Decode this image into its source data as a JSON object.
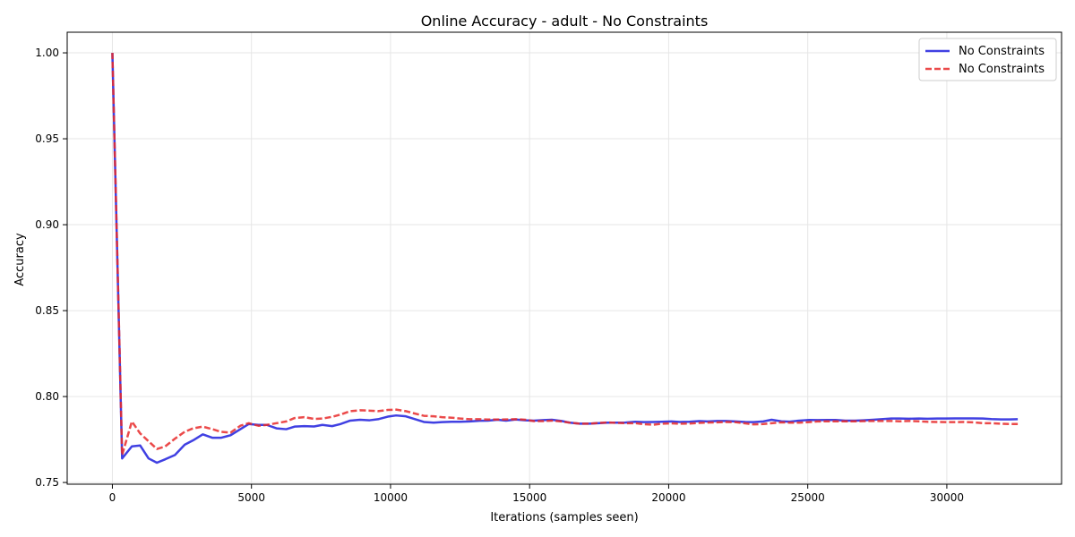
{
  "chart_data": {
    "type": "line",
    "title": "Online Accuracy - adult - No Constraints",
    "xlabel": "Iterations (samples seen)",
    "ylabel": "Accuracy",
    "xlim": [
      -1625,
      34125
    ],
    "ylim": [
      0.749,
      1.012
    ],
    "xticks": [
      0,
      5000,
      10000,
      15000,
      20000,
      25000,
      30000
    ],
    "yticks": [
      0.75,
      0.8,
      0.85,
      0.9,
      0.95,
      1.0
    ],
    "xtick_labels": [
      "0",
      "5000",
      "10000",
      "15000",
      "20000",
      "25000",
      "30000"
    ],
    "ytick_labels": [
      "0.75",
      "0.80",
      "0.85",
      "0.90",
      "0.95",
      "1.00"
    ],
    "grid": true,
    "legend_position": "top-right",
    "series": [
      {
        "name": "No Constraints",
        "color": "#1f1fdd",
        "style": "solid",
        "x": [
          0,
          350,
          700,
          1000,
          1300,
          1600,
          1900,
          2250,
          2600,
          2900,
          3250,
          3600,
          3900,
          4250,
          4600,
          4900,
          5250,
          5550,
          5900,
          6250,
          6550,
          6900,
          7250,
          7550,
          7900,
          8200,
          8550,
          8900,
          9250,
          9550,
          9900,
          10200,
          10550,
          10850,
          11200,
          11550,
          11850,
          12200,
          12500,
          12850,
          13200,
          13500,
          13850,
          14150,
          14500,
          14850,
          15150,
          15500,
          15800,
          16150,
          16450,
          16800,
          17150,
          17450,
          17800,
          18100,
          18450,
          18800,
          19100,
          19450,
          19750,
          20100,
          20400,
          20750,
          21100,
          21400,
          21750,
          22050,
          22400,
          22750,
          23050,
          23400,
          23700,
          24050,
          24350,
          24700,
          25050,
          25350,
          25700,
          26000,
          26350,
          26700,
          27000,
          27350,
          27650,
          28000,
          28300,
          28650,
          29000,
          29300,
          29650,
          29950,
          30300,
          30600,
          30950,
          31300,
          31600,
          31950,
          32250,
          32550
        ],
        "y": [
          1.0,
          0.764,
          0.771,
          0.7715,
          0.764,
          0.7615,
          0.7635,
          0.766,
          0.772,
          0.7745,
          0.778,
          0.776,
          0.776,
          0.7775,
          0.781,
          0.784,
          0.7835,
          0.7835,
          0.7815,
          0.781,
          0.7825,
          0.7828,
          0.7826,
          0.7835,
          0.7828,
          0.784,
          0.786,
          0.7865,
          0.7862,
          0.7868,
          0.7883,
          0.789,
          0.7885,
          0.787,
          0.7852,
          0.7848,
          0.7851,
          0.7853,
          0.7853,
          0.7855,
          0.7859,
          0.786,
          0.7865,
          0.786,
          0.7866,
          0.7862,
          0.786,
          0.7863,
          0.7865,
          0.7858,
          0.7848,
          0.7842,
          0.7842,
          0.7845,
          0.7848,
          0.7848,
          0.7849,
          0.7853,
          0.7851,
          0.7852,
          0.7853,
          0.7855,
          0.7852,
          0.7853,
          0.7857,
          0.7855,
          0.7858,
          0.7858,
          0.7855,
          0.7852,
          0.7851,
          0.7855,
          0.7865,
          0.7856,
          0.7854,
          0.786,
          0.7864,
          0.7863,
          0.7864,
          0.7864,
          0.786,
          0.786,
          0.7862,
          0.7865,
          0.7868,
          0.7872,
          0.7872,
          0.7871,
          0.7872,
          0.7871,
          0.7872,
          0.7872,
          0.7873,
          0.7873,
          0.7873,
          0.7872,
          0.7869,
          0.7867,
          0.7867,
          0.7868
        ]
      },
      {
        "name": "No Constraints",
        "color": "#e82a2a",
        "style": "dashed",
        "x": [
          0,
          350,
          700,
          1000,
          1300,
          1600,
          1900,
          2250,
          2600,
          2900,
          3250,
          3600,
          3900,
          4250,
          4600,
          4900,
          5250,
          5550,
          5900,
          6250,
          6550,
          6900,
          7250,
          7550,
          7900,
          8200,
          8550,
          8900,
          9250,
          9550,
          9900,
          10200,
          10550,
          10850,
          11200,
          11550,
          11850,
          12200,
          12500,
          12850,
          13200,
          13500,
          13850,
          14150,
          14500,
          14850,
          15150,
          15500,
          15800,
          16150,
          16450,
          16800,
          17150,
          17450,
          17800,
          18100,
          18450,
          18800,
          19100,
          19450,
          19750,
          20100,
          20400,
          20750,
          21100,
          21400,
          21750,
          22050,
          22400,
          22750,
          23050,
          23400,
          23700,
          24050,
          24350,
          24700,
          25050,
          25350,
          25700,
          26000,
          26350,
          26700,
          27000,
          27350,
          27650,
          28000,
          28300,
          28650,
          29000,
          29300,
          29650,
          29950,
          30300,
          30600,
          30950,
          31300,
          31600,
          31950,
          32250,
          32550
        ],
        "y": [
          1.0,
          0.766,
          0.7855,
          0.7785,
          0.774,
          0.7695,
          0.771,
          0.7755,
          0.7795,
          0.7815,
          0.7825,
          0.781,
          0.7795,
          0.779,
          0.783,
          0.7845,
          0.783,
          0.7835,
          0.7845,
          0.7855,
          0.7875,
          0.788,
          0.787,
          0.7872,
          0.7882,
          0.7895,
          0.7915,
          0.792,
          0.7918,
          0.7915,
          0.7922,
          0.7924,
          0.7915,
          0.7902,
          0.7888,
          0.7885,
          0.788,
          0.7877,
          0.7872,
          0.7868,
          0.7868,
          0.7866,
          0.7866,
          0.7867,
          0.7868,
          0.7865,
          0.7857,
          0.7857,
          0.786,
          0.7855,
          0.7848,
          0.7842,
          0.7842,
          0.7846,
          0.7849,
          0.7847,
          0.7845,
          0.7845,
          0.7839,
          0.7836,
          0.7842,
          0.7844,
          0.7842,
          0.7843,
          0.7847,
          0.7849,
          0.785,
          0.7852,
          0.7851,
          0.7844,
          0.7838,
          0.784,
          0.7845,
          0.785,
          0.7848,
          0.7848,
          0.7851,
          0.7855,
          0.7856,
          0.7856,
          0.7856,
          0.7856,
          0.7857,
          0.7858,
          0.7858,
          0.7858,
          0.7856,
          0.7858,
          0.7856,
          0.7853,
          0.7852,
          0.7851,
          0.7851,
          0.7852,
          0.785,
          0.7845,
          0.7845,
          0.7842,
          0.784,
          0.784
        ]
      }
    ]
  }
}
